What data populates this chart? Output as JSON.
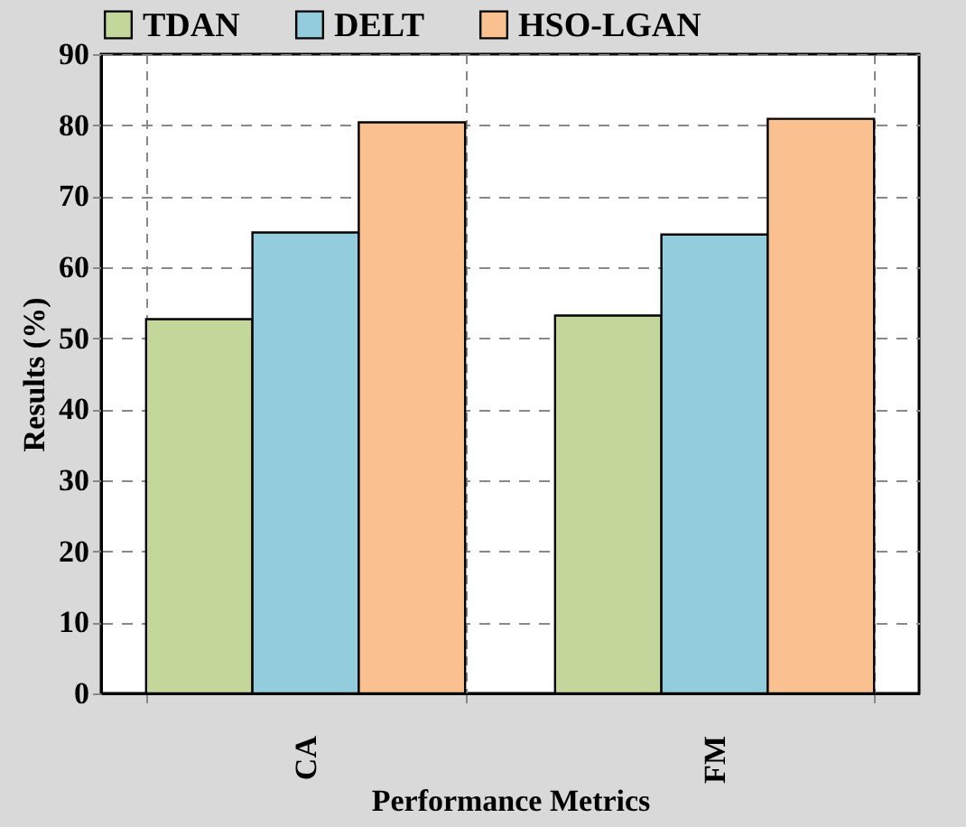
{
  "chart_data": {
    "type": "bar",
    "xlabel": "Performance Metrics",
    "ylabel": "Results (%)",
    "categories": [
      "CA",
      "FM"
    ],
    "series": [
      {
        "name": "TDAN",
        "color": "#c4d79b",
        "values": [
          52.7,
          53.2
        ]
      },
      {
        "name": "DELT",
        "color": "#93cddd",
        "values": [
          64.9,
          64.6
        ]
      },
      {
        "name": "HSO-LGAN",
        "color": "#fac090",
        "values": [
          80.4,
          80.9
        ]
      }
    ],
    "ylim": [
      0,
      90
    ],
    "yticks": [
      0,
      10,
      20,
      30,
      40,
      50,
      60,
      70,
      80,
      90
    ],
    "grid": true,
    "legend": "top"
  }
}
